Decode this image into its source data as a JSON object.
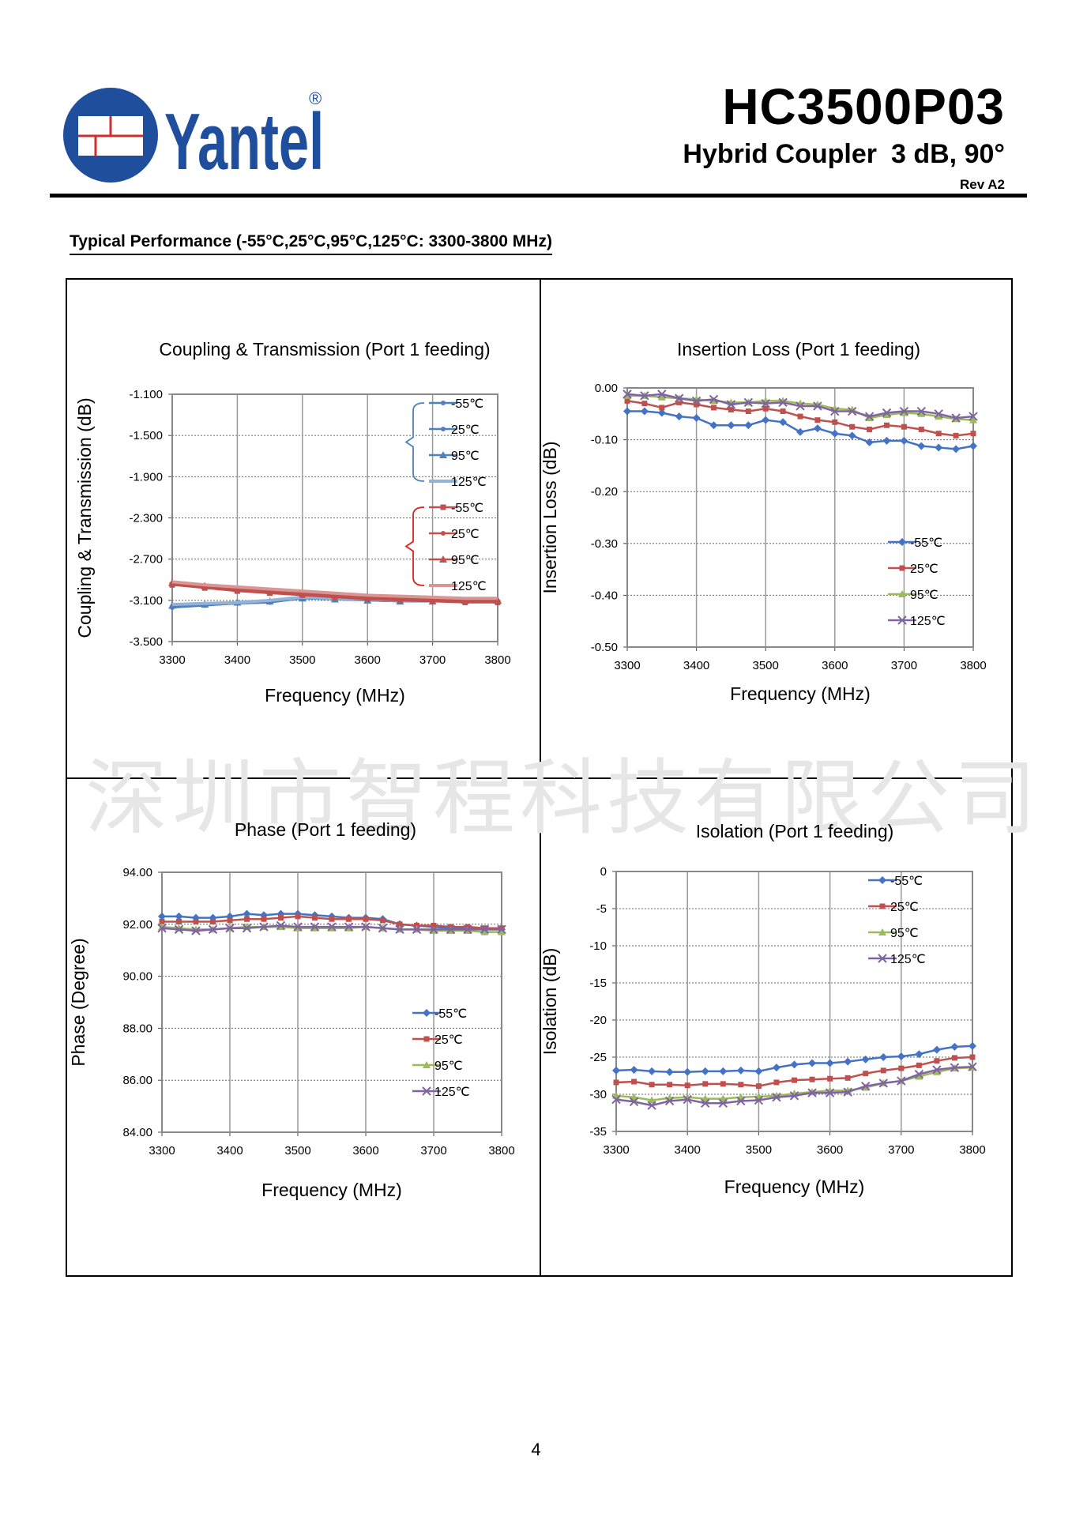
{
  "header": {
    "brand": "Yantel",
    "registered": "®",
    "model": "HC3500P03",
    "product": "Hybrid Coupler",
    "spec": "3 dB, 90°",
    "revision": "Rev A2"
  },
  "section_title": "Typical Performance (-55°C,25°C,95°C,125°C:  3300-3800 MHz)",
  "watermark": "深圳市智程科技有限公司",
  "page_number": "4",
  "colors": {
    "blue": "#4472c4",
    "red": "#c0504d",
    "green": "#9bbb59",
    "purple": "#8064a2",
    "coupling_blue": "#4f81bd",
    "coupling_light_blue": "#95b3d7",
    "coupling_light_red": "#d99694",
    "logo_blue": "#1f4e9c"
  },
  "chart_data": [
    {
      "type": "line",
      "title": "Coupling & Transmission (Port 1 feeding)",
      "xlabel": "Frequency (MHz)",
      "ylabel": "Coupling & Transmission (dB)",
      "xlim": [
        3300,
        3800
      ],
      "ylim": [
        -3.5,
        -1.1
      ],
      "xticks": [
        "3300",
        "3400",
        "3500",
        "3600",
        "3700",
        "3800"
      ],
      "yticks": [
        "-1.100",
        "-1.500",
        "-1.900",
        "-2.300",
        "-2.700",
        "-3.100",
        "-3.500"
      ],
      "legend": [
        "-55℃",
        "25℃",
        "95℃",
        "125℃",
        "-55℃",
        "25℃",
        "95℃",
        "125℃"
      ],
      "x": [
        3300,
        3350,
        3400,
        3450,
        3500,
        3550,
        3600,
        3650,
        3700,
        3750,
        3800
      ],
      "series": [
        {
          "name": "-55℃",
          "group": "coupling",
          "values": [
            -3.17,
            -3.15,
            -3.13,
            -3.12,
            -3.08,
            -3.09,
            -3.1,
            -3.11,
            -3.11,
            -3.11,
            -3.11
          ]
        },
        {
          "name": "25℃",
          "group": "coupling",
          "values": [
            -3.16,
            -3.14,
            -3.13,
            -3.12,
            -3.08,
            -3.09,
            -3.1,
            -3.11,
            -3.11,
            -3.11,
            -3.11
          ]
        },
        {
          "name": "95℃",
          "group": "coupling",
          "values": [
            -3.15,
            -3.14,
            -3.12,
            -3.11,
            -3.08,
            -3.09,
            -3.1,
            -3.11,
            -3.11,
            -3.1,
            -3.1
          ]
        },
        {
          "name": "125℃",
          "group": "coupling",
          "values": [
            -3.14,
            -3.13,
            -3.12,
            -3.1,
            -3.07,
            -3.08,
            -3.09,
            -3.1,
            -3.1,
            -3.1,
            -3.1
          ]
        },
        {
          "name": "-55℃",
          "group": "transmission",
          "values": [
            -2.95,
            -2.98,
            -3.01,
            -3.03,
            -3.05,
            -3.07,
            -3.09,
            -3.1,
            -3.11,
            -3.12,
            -3.12
          ]
        },
        {
          "name": "25℃",
          "group": "transmission",
          "values": [
            -2.94,
            -2.97,
            -3.0,
            -3.02,
            -3.04,
            -3.06,
            -3.08,
            -3.09,
            -3.1,
            -3.11,
            -3.11
          ]
        },
        {
          "name": "95℃",
          "group": "transmission",
          "values": [
            -2.93,
            -2.96,
            -2.99,
            -3.01,
            -3.03,
            -3.05,
            -3.07,
            -3.08,
            -3.09,
            -3.1,
            -3.1
          ]
        },
        {
          "name": "125℃",
          "group": "transmission",
          "values": [
            -2.92,
            -2.95,
            -2.97,
            -2.99,
            -3.01,
            -3.03,
            -3.05,
            -3.06,
            -3.07,
            -3.08,
            -3.08
          ]
        }
      ]
    },
    {
      "type": "line",
      "title": "Insertion Loss (Port 1 feeding)",
      "xlabel": "Frequency (MHz)",
      "ylabel": "Insertion Loss (dB)",
      "xlim": [
        3300,
        3800
      ],
      "ylim": [
        -0.5,
        0
      ],
      "xticks": [
        "3300",
        "3400",
        "3500",
        "3600",
        "3700",
        "3800"
      ],
      "yticks": [
        "0.00",
        "-0.10",
        "-0.20",
        "-0.30",
        "-0.40",
        "-0.50"
      ],
      "legend": [
        "-55℃",
        "25℃",
        "95℃",
        "125℃"
      ],
      "x": [
        3300,
        3325,
        3350,
        3375,
        3400,
        3425,
        3450,
        3475,
        3500,
        3525,
        3550,
        3575,
        3600,
        3625,
        3650,
        3675,
        3700,
        3725,
        3750,
        3775,
        3800
      ],
      "series": [
        {
          "name": "-55℃",
          "values": [
            -0.045,
            -0.045,
            -0.048,
            -0.055,
            -0.058,
            -0.072,
            -0.072,
            -0.072,
            -0.062,
            -0.066,
            -0.085,
            -0.078,
            -0.088,
            -0.092,
            -0.105,
            -0.102,
            -0.102,
            -0.112,
            -0.115,
            -0.118,
            -0.112
          ]
        },
        {
          "name": "25℃",
          "values": [
            -0.025,
            -0.03,
            -0.038,
            -0.028,
            -0.032,
            -0.038,
            -0.042,
            -0.045,
            -0.04,
            -0.045,
            -0.055,
            -0.062,
            -0.066,
            -0.075,
            -0.08,
            -0.072,
            -0.075,
            -0.08,
            -0.088,
            -0.092,
            -0.088
          ]
        },
        {
          "name": "95℃",
          "values": [
            -0.015,
            -0.015,
            -0.018,
            -0.02,
            -0.022,
            -0.025,
            -0.028,
            -0.028,
            -0.025,
            -0.025,
            -0.03,
            -0.032,
            -0.04,
            -0.042,
            -0.058,
            -0.052,
            -0.048,
            -0.05,
            -0.055,
            -0.06,
            -0.062
          ]
        },
        {
          "name": "125℃",
          "values": [
            -0.012,
            -0.015,
            -0.012,
            -0.02,
            -0.025,
            -0.022,
            -0.032,
            -0.028,
            -0.03,
            -0.028,
            -0.035,
            -0.035,
            -0.045,
            -0.045,
            -0.055,
            -0.048,
            -0.045,
            -0.045,
            -0.05,
            -0.058,
            -0.055
          ]
        }
      ]
    },
    {
      "type": "line",
      "title": "Phase (Port 1 feeding)",
      "xlabel": "Frequency (MHz)",
      "ylabel": "Phase (Degree)",
      "xlim": [
        3300,
        3800
      ],
      "ylim": [
        84,
        94
      ],
      "xticks": [
        "3300",
        "3400",
        "3500",
        "3600",
        "3700",
        "3800"
      ],
      "yticks": [
        "94.00",
        "92.00",
        "90.00",
        "88.00",
        "86.00",
        "84.00"
      ],
      "legend": [
        "-55℃",
        "25℃",
        "95℃",
        "125℃"
      ],
      "x": [
        3300,
        3325,
        3350,
        3375,
        3400,
        3425,
        3450,
        3475,
        3500,
        3525,
        3550,
        3575,
        3600,
        3625,
        3650,
        3675,
        3700,
        3725,
        3750,
        3775,
        3800
      ],
      "series": [
        {
          "name": "-55℃",
          "values": [
            92.3,
            92.3,
            92.25,
            92.25,
            92.3,
            92.4,
            92.35,
            92.4,
            92.4,
            92.35,
            92.3,
            92.25,
            92.25,
            92.2,
            92.0,
            91.95,
            91.9,
            91.85,
            91.85,
            91.8,
            91.8
          ]
        },
        {
          "name": "25℃",
          "values": [
            92.1,
            92.1,
            92.1,
            92.1,
            92.15,
            92.2,
            92.2,
            92.25,
            92.3,
            92.25,
            92.2,
            92.2,
            92.2,
            92.15,
            92.0,
            91.95,
            91.95,
            91.9,
            91.9,
            91.85,
            91.85
          ]
        },
        {
          "name": "95℃",
          "values": [
            91.9,
            91.85,
            91.8,
            91.8,
            91.85,
            91.9,
            91.9,
            91.9,
            91.85,
            91.85,
            91.85,
            91.85,
            91.9,
            91.85,
            91.8,
            91.8,
            91.75,
            91.75,
            91.75,
            91.7,
            91.7
          ]
        },
        {
          "name": "125℃",
          "values": [
            91.85,
            91.8,
            91.75,
            91.8,
            91.85,
            91.85,
            91.9,
            91.95,
            91.9,
            91.9,
            91.9,
            91.9,
            91.9,
            91.85,
            91.8,
            91.8,
            91.8,
            91.8,
            91.8,
            91.8,
            91.8
          ]
        }
      ]
    },
    {
      "type": "line",
      "title": "Isolation (Port 1 feeding)",
      "xlabel": "Frequency (MHz)",
      "ylabel": "Isolation (dB)",
      "xlim": [
        3300,
        3800
      ],
      "ylim": [
        -35,
        0
      ],
      "xticks": [
        "3300",
        "3400",
        "3500",
        "3600",
        "3700",
        "3800"
      ],
      "yticks": [
        "0",
        "-5",
        "-10",
        "-15",
        "-20",
        "-25",
        "-30",
        "-35"
      ],
      "legend": [
        "-55℃",
        "25℃",
        "95℃",
        "125℃"
      ],
      "x": [
        3300,
        3325,
        3350,
        3375,
        3400,
        3425,
        3450,
        3475,
        3500,
        3525,
        3550,
        3575,
        3600,
        3625,
        3650,
        3675,
        3700,
        3725,
        3750,
        3775,
        3800
      ],
      "series": [
        {
          "name": "-55℃",
          "values": [
            -26.8,
            -26.7,
            -26.9,
            -27.0,
            -27.0,
            -26.9,
            -26.9,
            -26.8,
            -26.9,
            -26.4,
            -26.0,
            -25.8,
            -25.8,
            -25.6,
            -25.3,
            -25.0,
            -24.9,
            -24.6,
            -24.0,
            -23.6,
            -23.5
          ]
        },
        {
          "name": "25℃",
          "values": [
            -28.4,
            -28.3,
            -28.7,
            -28.7,
            -28.8,
            -28.6,
            -28.6,
            -28.7,
            -28.9,
            -28.4,
            -28.1,
            -28.0,
            -27.9,
            -27.8,
            -27.2,
            -26.8,
            -26.5,
            -26.1,
            -25.5,
            -25.1,
            -25.0
          ]
        },
        {
          "name": "95℃",
          "values": [
            -30.2,
            -30.4,
            -30.8,
            -30.5,
            -30.4,
            -30.6,
            -30.6,
            -30.4,
            -30.3,
            -30.2,
            -29.9,
            -29.7,
            -29.5,
            -29.5,
            -29.1,
            -28.5,
            -28.2,
            -27.6,
            -27.0,
            -26.5,
            -26.4
          ]
        },
        {
          "name": "125℃",
          "values": [
            -30.7,
            -31.0,
            -31.5,
            -30.9,
            -30.7,
            -31.2,
            -31.2,
            -30.9,
            -30.8,
            -30.4,
            -30.2,
            -29.8,
            -29.8,
            -29.7,
            -28.9,
            -28.5,
            -28.2,
            -27.3,
            -26.7,
            -26.4,
            -26.3
          ]
        }
      ]
    }
  ]
}
